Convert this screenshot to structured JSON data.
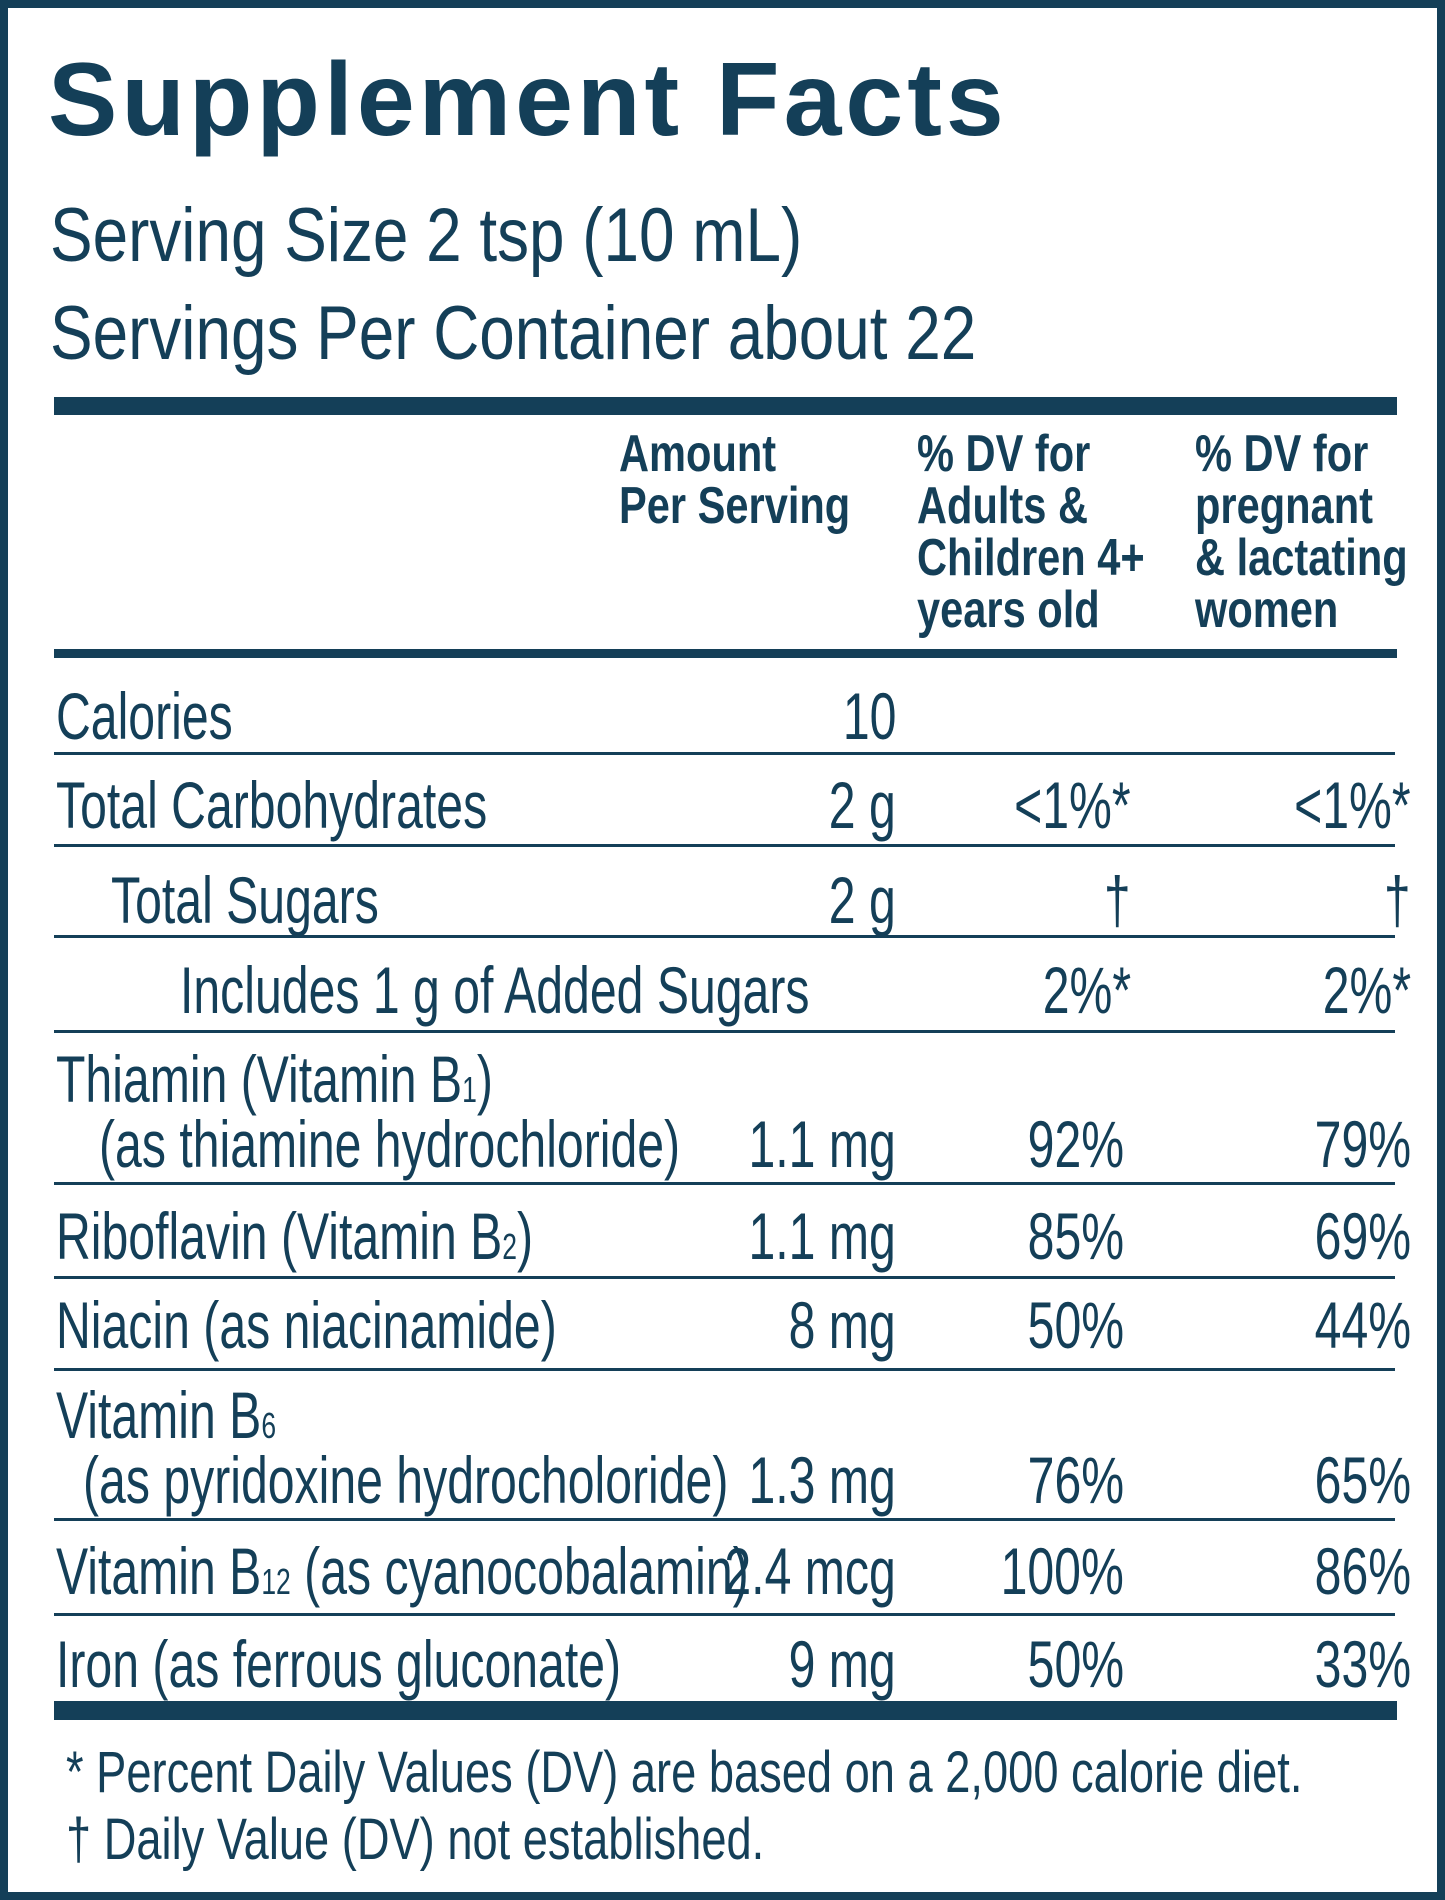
{
  "title": "Supplement Facts",
  "serving_size": "Serving Size 2 tsp (10 mL)",
  "servings_per_container": "Servings Per Container about 22",
  "headers": {
    "amount": [
      "Amount",
      "Per Serving"
    ],
    "dv_adults": [
      "% DV for",
      "Adults &",
      "Children 4+",
      "years old"
    ],
    "dv_pregnant": [
      "% DV for",
      "pregnant",
      "& lactating",
      "women"
    ]
  },
  "rows": [
    {
      "name": "Calories",
      "amount": "10",
      "dv_adults": "",
      "dv_pregnant": ""
    },
    {
      "name": "Total Carbohydrates",
      "amount": "2 g",
      "dv_adults": "<1%*",
      "dv_pregnant": "<1%*"
    },
    {
      "name": "Total Sugars",
      "amount": "2 g",
      "dv_adults": "†",
      "dv_pregnant": "†"
    },
    {
      "name": "Includes 1 g of Added Sugars",
      "amount": "",
      "dv_adults": "2%*",
      "dv_pregnant": "2%*"
    },
    {
      "name": "Thiamin (Vitamin B",
      "sub": "1",
      "name_end": ")",
      "detail": "(as thiamine hydrochloride)",
      "amount": "1.1 mg",
      "dv_adults": "92%",
      "dv_pregnant": "79%"
    },
    {
      "name": "Riboflavin (Vitamin B",
      "sub": "2",
      "name_end": ")",
      "amount": "1.1 mg",
      "dv_adults": "85%",
      "dv_pregnant": "69%"
    },
    {
      "name": "Niacin (as niacinamide)",
      "amount": "8 mg",
      "dv_adults": "50%",
      "dv_pregnant": "44%"
    },
    {
      "name": "Vitamin B",
      "sub": "6",
      "detail": "(as pyridoxine hydrocholoride)",
      "amount": "1.3 mg",
      "dv_adults": "76%",
      "dv_pregnant": "65%"
    },
    {
      "name": "Vitamin B",
      "sub": "12",
      "name_end": " (as cyanocobalamin)",
      "amount": "2.4 mcg",
      "dv_adults": "100%",
      "dv_pregnant": "86%"
    },
    {
      "name": "Iron (as ferrous gluconate)",
      "amount": "9 mg",
      "dv_adults": "50%",
      "dv_pregnant": "33%"
    }
  ],
  "footnotes": [
    "* Percent Daily Values (DV) are based on a 2,000 calorie diet.",
    "† Daily Value (DV) not established."
  ],
  "colors": {
    "ink": "#143f58",
    "background": "#ffffff"
  }
}
